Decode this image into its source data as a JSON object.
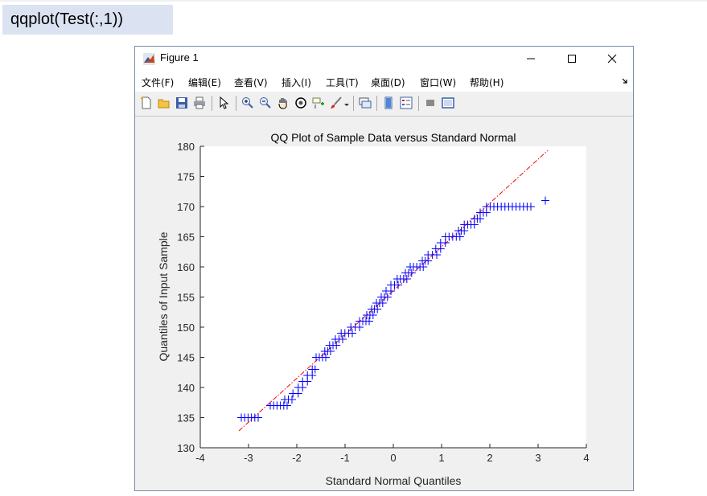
{
  "command": "qqplot(Test(:,1))",
  "window": {
    "title": "Figure 1",
    "controls": {
      "minimize": "minimize",
      "maximize": "maximize",
      "close": "close"
    }
  },
  "menu": [
    "文件(F)",
    "编辑(E)",
    "查看(V)",
    "插入(I)",
    "工具(T)",
    "桌面(D)",
    "窗口(W)",
    "帮助(H)"
  ],
  "toolbar": {
    "icons": [
      "new-figure-icon",
      "open-file-icon",
      "save-icon",
      "print-icon",
      "pointer-icon",
      "zoom-in-icon",
      "zoom-out-icon",
      "pan-hand-icon",
      "rotate-3d-icon",
      "data-cursor-icon",
      "brush-icon",
      "brush-dropdown-icon",
      "link-plot-icon",
      "colorbar-icon",
      "legend-icon",
      "hide-plot-tools-icon",
      "show-plot-tools-icon"
    ]
  },
  "colors": {
    "marker": "#0000ff",
    "refline": "#ff0000",
    "axes_bg": "#ffffff",
    "figure_bg": "#f0f0f0"
  },
  "chart_data": {
    "type": "scatter",
    "title": "QQ Plot of Sample Data versus Standard Normal",
    "xlabel": "Standard Normal Quantiles",
    "ylabel": "Quantiles of Input Sample",
    "xlim": [
      -4,
      4
    ],
    "ylim": [
      130,
      180
    ],
    "xticks": [
      -4,
      -3,
      -2,
      -1,
      0,
      1,
      2,
      3,
      4
    ],
    "yticks": [
      130,
      135,
      140,
      145,
      150,
      155,
      160,
      165,
      170,
      175,
      180
    ],
    "grid": false,
    "marker": "+",
    "reference_line": {
      "style": "dash-dot",
      "points": [
        [
          -3.2,
          132.8
        ],
        [
          3.2,
          179.3
        ]
      ]
    },
    "quantile_runs": [
      {
        "value": 135,
        "x": [
          -3.15,
          -2.8
        ]
      },
      {
        "value": 137,
        "x": [
          -2.55,
          -2.2
        ]
      },
      {
        "value": 138,
        "x": [
          -2.25,
          -2.1
        ]
      },
      {
        "value": 139,
        "x": [
          -2.08,
          -1.97
        ]
      },
      {
        "value": 140,
        "x": [
          -1.97,
          -1.88
        ]
      },
      {
        "value": 141,
        "x": [
          -1.88,
          -1.78
        ]
      },
      {
        "value": 142,
        "x": [
          -1.78,
          -1.68
        ]
      },
      {
        "value": 143,
        "x": [
          -1.68,
          -1.62
        ]
      },
      {
        "value": 145,
        "x": [
          -1.6,
          -1.4
        ]
      },
      {
        "value": 146,
        "x": [
          -1.42,
          -1.3
        ]
      },
      {
        "value": 147,
        "x": [
          -1.32,
          -1.18
        ]
      },
      {
        "value": 148,
        "x": [
          -1.2,
          -1.05
        ]
      },
      {
        "value": 149,
        "x": [
          -1.08,
          -0.85
        ]
      },
      {
        "value": 150,
        "x": [
          -0.88,
          -0.7
        ]
      },
      {
        "value": 151,
        "x": [
          -0.7,
          -0.5
        ]
      },
      {
        "value": 152,
        "x": [
          -0.55,
          -0.42
        ]
      },
      {
        "value": 153,
        "x": [
          -0.45,
          -0.33
        ]
      },
      {
        "value": 154,
        "x": [
          -0.35,
          -0.22
        ]
      },
      {
        "value": 155,
        "x": [
          -0.25,
          -0.12
        ]
      },
      {
        "value": 156,
        "x": [
          -0.15,
          -0.05
        ]
      },
      {
        "value": 157,
        "x": [
          -0.05,
          0.1
        ]
      },
      {
        "value": 158,
        "x": [
          0.08,
          0.28
        ]
      },
      {
        "value": 159,
        "x": [
          0.25,
          0.38
        ]
      },
      {
        "value": 160,
        "x": [
          0.35,
          0.62
        ]
      },
      {
        "value": 161,
        "x": [
          0.6,
          0.72
        ]
      },
      {
        "value": 162,
        "x": [
          0.72,
          0.9
        ]
      },
      {
        "value": 163,
        "x": [
          0.88,
          0.98
        ]
      },
      {
        "value": 164,
        "x": [
          0.98,
          1.08
        ]
      },
      {
        "value": 165,
        "x": [
          1.08,
          1.38
        ]
      },
      {
        "value": 166,
        "x": [
          1.35,
          1.47
        ]
      },
      {
        "value": 167,
        "x": [
          1.47,
          1.68
        ]
      },
      {
        "value": 168,
        "x": [
          1.68,
          1.8
        ]
      },
      {
        "value": 169,
        "x": [
          1.8,
          1.93
        ]
      },
      {
        "value": 170,
        "x": [
          1.93,
          2.85
        ]
      },
      {
        "value": 171,
        "x": [
          3.15,
          3.15
        ]
      }
    ]
  }
}
